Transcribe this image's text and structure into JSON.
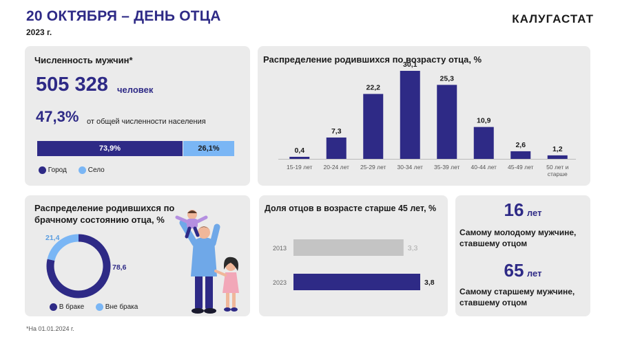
{
  "header": {
    "title": "20 ОКТЯБРЯ – ДЕНЬ ОТЦА",
    "year": "2023 г.",
    "brand": "КАЛУГАСТАТ"
  },
  "men": {
    "title": "Численность мужчин*",
    "count": "505 328",
    "count_unit": "человек",
    "share": "47,3%",
    "share_text": "от общей численности населения",
    "city_label": "73,9%",
    "village_label": "26,1%",
    "city_value": 73.9,
    "village_value": 26.1,
    "legend": [
      "Город",
      "Село"
    ]
  },
  "colors": {
    "primary": "#2e2a86",
    "light_blue": "#7ab6f5",
    "gray_bar": "#c4c4c4",
    "panel": "#ebebeb"
  },
  "chart_data": [
    {
      "type": "bar",
      "title": "Распределение родившихся по возрасту отца, %",
      "categories": [
        "15-19 лет",
        "20-24 лет",
        "25-29 лет",
        "30-34 лет",
        "35-39 лет",
        "40-44 лет",
        "45-49 лет",
        "50 лет и старше"
      ],
      "values": [
        0.4,
        7.3,
        22.2,
        30.1,
        25.3,
        10.9,
        2.6,
        1.2
      ],
      "value_labels": [
        "0,4",
        "7,3",
        "22,2",
        "30,1",
        "25,3",
        "10,9",
        "2,6",
        "1,2"
      ],
      "ylim": [
        0,
        30.1
      ]
    },
    {
      "type": "pie",
      "title": "Распределение родившихся по брачному состоянию отца, %",
      "series": [
        {
          "name": "В браке",
          "value": 78.6,
          "label": "78,6"
        },
        {
          "name": "Вне брака",
          "value": 21.4,
          "label": "21,4"
        }
      ]
    },
    {
      "type": "bar",
      "title": "Доля отцов в возрасте старше 45 лет, %",
      "categories": [
        "2013",
        "2023"
      ],
      "values": [
        3.3,
        3.8
      ],
      "value_labels": [
        "3,3",
        "3,8"
      ],
      "xlim": [
        0,
        3.8
      ]
    }
  ],
  "ages": {
    "youngest_value": "16",
    "youngest_unit": "лет",
    "youngest_text": "Самому молодому мужчине, ставшему отцом",
    "oldest_value": "65",
    "oldest_unit": "лет",
    "oldest_text": "Самому старшему мужчине, ставшему отцом"
  },
  "footnote": "*На 01.01.2024 г."
}
